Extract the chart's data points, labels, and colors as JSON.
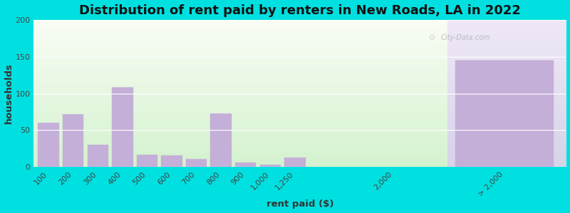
{
  "title": "Distribution of rent paid by renters in New Roads, LA in 2022",
  "xlabel": "rent paid ($)",
  "ylabel": "households",
  "bar_labels": [
    "100",
    "200",
    "300",
    "400",
    "500",
    "600",
    "700",
    "800",
    "900",
    "1,000",
    "1,250",
    "2,000",
    "> 2,000"
  ],
  "bar_values": [
    60,
    72,
    30,
    108,
    17,
    16,
    11,
    73,
    6,
    3,
    13,
    0,
    145
  ],
  "bar_color": "#c4afd8",
  "ylim": [
    0,
    200
  ],
  "yticks": [
    0,
    50,
    100,
    150,
    200
  ],
  "background_outer": "#00e0e0",
  "title_fontsize": 13,
  "axis_label_fontsize": 9.5,
  "tick_fontsize": 8,
  "watermark": "City-Data.com"
}
